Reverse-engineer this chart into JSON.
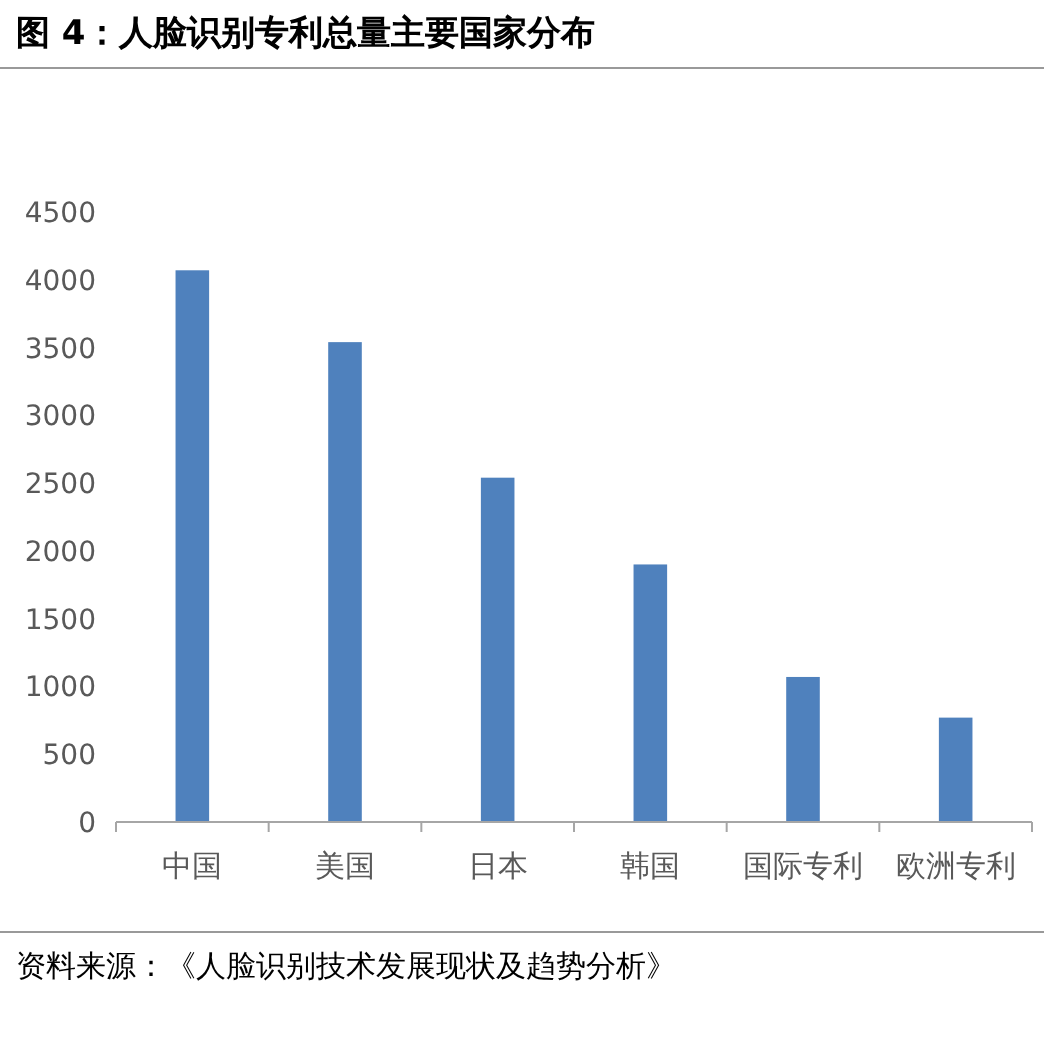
{
  "chart_data": {
    "type": "bar",
    "title": "图 4：人脸识别专利总量主要国家分布",
    "categories": [
      "中国",
      "美国",
      "日本",
      "韩国",
      "国际专利",
      "欧洲专利"
    ],
    "values": [
      4070,
      3540,
      2540,
      1900,
      1070,
      770
    ],
    "color": "#4f81bd",
    "ylim": [
      0,
      4500
    ],
    "yticks": [
      0,
      500,
      1000,
      1500,
      2000,
      2500,
      3000,
      3500,
      4000,
      4500
    ],
    "grid": false,
    "annotations": [
      "资料来源：《人脸识别技术发展现状及趋势分析》"
    ]
  }
}
